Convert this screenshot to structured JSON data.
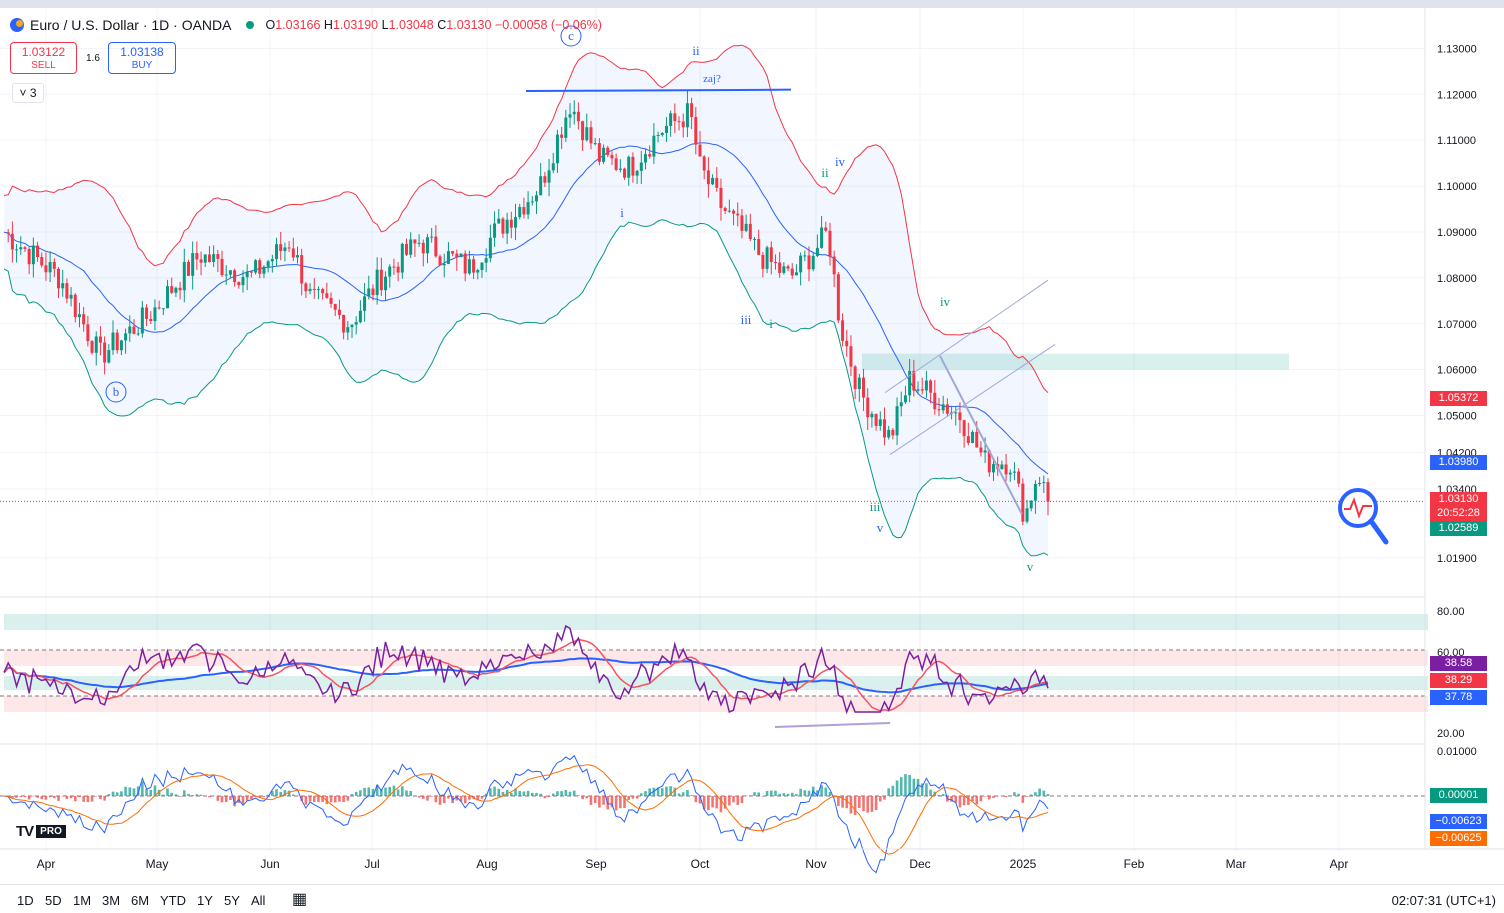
{
  "header": {
    "title": "Euro / U.S. Dollar · 1D · OANDA",
    "ohlc": {
      "o_label": "O",
      "o": "1.03166",
      "h_label": "H",
      "h": "1.03190",
      "l_label": "L",
      "l": "1.03048",
      "c_label": "C",
      "c": "1.03130",
      "change": "−0.00058 (−0.06%)"
    }
  },
  "trade": {
    "sell_price": "1.03122",
    "sell_label": "SELL",
    "buy_price": "1.03138",
    "buy_label": "BUY",
    "spread": "1.6",
    "collapse_count": "3"
  },
  "timeframes": [
    "1D",
    "5D",
    "1M",
    "3M",
    "6M",
    "YTD",
    "1Y",
    "5Y",
    "All"
  ],
  "clock": "02:07:31 (UTC+1)",
  "logo": {
    "pro": "PRO"
  },
  "colors": {
    "up": "#089981",
    "down": "#f23645",
    "bb_upper": "#f23645",
    "bb_basis": "#2962ff",
    "bb_lower": "#089981",
    "rsi": "#7b1fa2"
  },
  "chart_data": [
    {
      "type": "candlestick",
      "title": "Euro / U.S. Dollar · 1D · OANDA",
      "x_labels": [
        "Apr",
        "May",
        "Jun",
        "Jul",
        "Aug",
        "Sep",
        "Oct",
        "Nov",
        "Dec",
        "2025",
        "Feb",
        "Mar",
        "Apr"
      ],
      "y_ticks": [
        "1.13000",
        "1.12000",
        "1.11000",
        "1.10000",
        "1.09000",
        "1.08000",
        "1.07000",
        "1.06000",
        "1.05000",
        "1.04200",
        "1.03400",
        "1.01900"
      ],
      "ylim": [
        1.012,
        1.134
      ],
      "close_series_monthly": [
        {
          "month": "Apr",
          "close": 1.07
        },
        {
          "month": "May",
          "close": 1.085
        },
        {
          "month": "Jun",
          "close": 1.072
        },
        {
          "month": "Jul",
          "close": 1.083
        },
        {
          "month": "Aug",
          "close": 1.105
        },
        {
          "month": "Sep",
          "close": 1.113
        },
        {
          "month": "Oct",
          "close": 1.082
        },
        {
          "month": "Nov",
          "close": 1.058
        },
        {
          "month": "Dec",
          "close": 1.04
        },
        {
          "month": "2025",
          "close": 1.0313
        }
      ],
      "price_tags": [
        {
          "value": "1.05372",
          "color": "#f23645"
        },
        {
          "value": "1.03980",
          "color": "#2962ff"
        },
        {
          "value": "1.03130",
          "color": "#f23645"
        },
        {
          "value": "20:52:28",
          "color": "#f23645"
        },
        {
          "value": "1.02589",
          "color": "#089981"
        }
      ],
      "wave_labels": [
        "c",
        "ii",
        "zaj?",
        "ii",
        "iv",
        "i",
        "iii",
        "i",
        "iv",
        "iii",
        "v",
        "v",
        "b"
      ]
    },
    {
      "type": "line",
      "title": "RSI",
      "y_ticks": [
        "80.00",
        "60.00",
        "20.00"
      ],
      "ylim": [
        15,
        85
      ],
      "values": {
        "rsi": "38.58",
        "ma": "38.29",
        "basis": "37.78"
      }
    },
    {
      "type": "line",
      "title": "MACD",
      "y_ticks": [
        "0.01000"
      ],
      "values": {
        "histogram": "0.00001",
        "macd": "−0.00623",
        "signal": "−0.00625"
      }
    }
  ]
}
